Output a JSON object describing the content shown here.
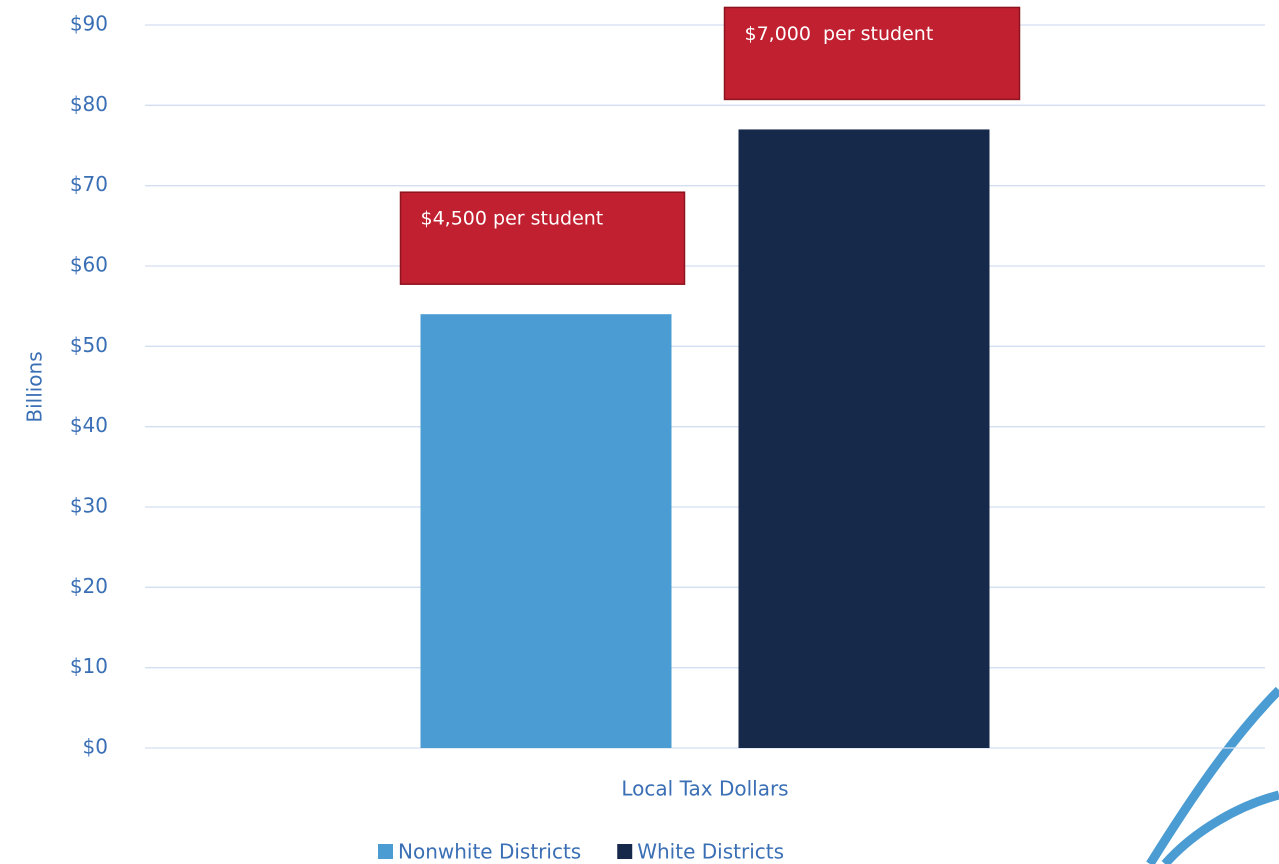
{
  "chart_data": {
    "type": "bar",
    "y_axis_label": "Billions",
    "categories": [
      "Local Tax Dollars"
    ],
    "series": [
      {
        "name": "Nonwhite Districts",
        "color": "#4b9cd3",
        "values": [
          54
        ]
      },
      {
        "name": "White Districts",
        "color": "#16294b",
        "values": [
          77
        ]
      }
    ],
    "annotations": [
      "$4,500 per student",
      "$7,000  per student"
    ],
    "annotation_color": "#c0202f",
    "ylim": [
      0,
      90
    ],
    "yticks": [
      {
        "value": 0,
        "label": "$0"
      },
      {
        "value": 10,
        "label": "$10"
      },
      {
        "value": 20,
        "label": "$20"
      },
      {
        "value": 30,
        "label": "$30"
      },
      {
        "value": 40,
        "label": "$40"
      },
      {
        "value": 50,
        "label": "$50"
      },
      {
        "value": 60,
        "label": "$60"
      },
      {
        "value": 70,
        "label": "$70"
      },
      {
        "value": 80,
        "label": "$80"
      },
      {
        "value": 90,
        "label": "$90"
      }
    ],
    "grid": true,
    "legend": "bottom"
  }
}
